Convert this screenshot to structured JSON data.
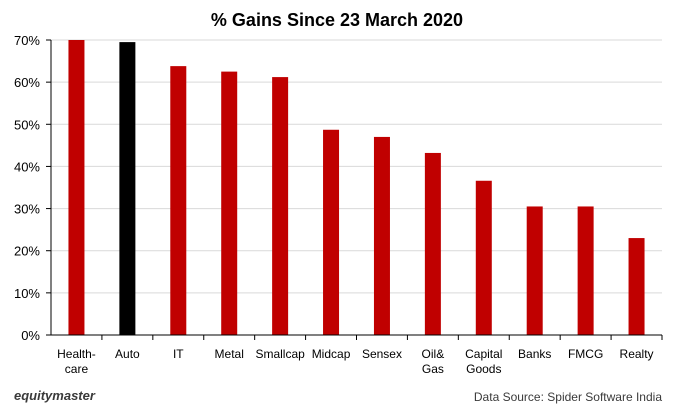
{
  "chart_data": {
    "type": "bar",
    "title": "% Gains Since 23 March 2020",
    "categories": [
      [
        "Health-",
        "care"
      ],
      [
        "Auto"
      ],
      [
        "IT"
      ],
      [
        "Metal"
      ],
      [
        "Smallcap"
      ],
      [
        "Midcap"
      ],
      [
        "Sensex"
      ],
      [
        "Oil&",
        "Gas"
      ],
      [
        "Capital",
        "Goods"
      ],
      [
        "Banks"
      ],
      [
        "FMCG"
      ],
      [
        "Realty"
      ]
    ],
    "values": [
      70,
      69.5,
      63.8,
      62.5,
      61.2,
      48.7,
      47.0,
      43.2,
      36.6,
      30.5,
      30.5,
      23.0
    ],
    "highlight_index": 1,
    "ylim": [
      0,
      70
    ],
    "yticks": [
      "0%",
      "10%",
      "20%",
      "30%",
      "40%",
      "50%",
      "60%",
      "70%"
    ],
    "ytick_values": [
      0,
      10,
      20,
      30,
      40,
      50,
      60,
      70
    ],
    "grid": true,
    "colors": {
      "bar": "#c00000",
      "highlight": "#000000",
      "grid": "#d9d9d9",
      "axis": "#000000"
    }
  },
  "footer": {
    "brand": "equitymaster",
    "source": "Data Source: Spider Software India"
  }
}
